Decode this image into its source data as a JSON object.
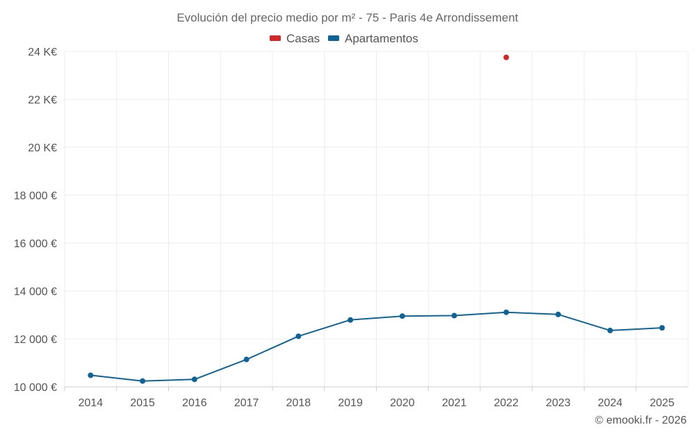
{
  "chart_data": {
    "type": "line",
    "title": "Evolución del precio medio por m² - 75 - Paris 4e Arrondissement",
    "categories": [
      "2014",
      "2015",
      "2016",
      "2017",
      "2018",
      "2019",
      "2020",
      "2021",
      "2022",
      "2023",
      "2024",
      "2025"
    ],
    "ylim": [
      10000,
      24000
    ],
    "y_ticks": [
      {
        "value": 10000,
        "label": "10 000 €"
      },
      {
        "value": 12000,
        "label": "12 000 €"
      },
      {
        "value": 14000,
        "label": "14 000 €"
      },
      {
        "value": 16000,
        "label": "16 000 €"
      },
      {
        "value": 18000,
        "label": "18 000 €"
      },
      {
        "value": 20000,
        "label": "20 K€"
      },
      {
        "value": 22000,
        "label": "22 K€"
      },
      {
        "value": 24000,
        "label": "24 K€"
      }
    ],
    "legend_position": "top-center",
    "grid": true,
    "series": [
      {
        "name": "Casas",
        "color": "#d62728",
        "values": [
          null,
          null,
          null,
          null,
          null,
          null,
          null,
          null,
          23750,
          null,
          null,
          null
        ]
      },
      {
        "name": "Apartamentos",
        "color": "#0e6397",
        "values": [
          10480,
          10240,
          10310,
          11140,
          12110,
          12790,
          12950,
          12970,
          13110,
          13020,
          12350,
          12460
        ]
      }
    ]
  },
  "credit": "© emooki.fr - 2026"
}
